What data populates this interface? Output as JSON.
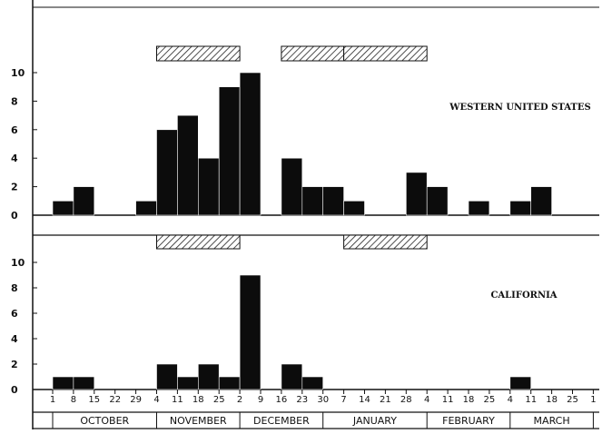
{
  "chart_data": [
    {
      "type": "bar",
      "title": "WESTERN UNITED STATES",
      "ylim": [
        0,
        10
      ],
      "yticks": [
        0,
        2,
        4,
        6,
        8,
        10
      ],
      "grid": false,
      "x": [
        "1",
        "8",
        "15",
        "22",
        "29",
        "4",
        "11",
        "18",
        "25",
        "2",
        "9",
        "16",
        "23",
        "30",
        "7",
        "14",
        "21",
        "28",
        "4",
        "11",
        "18",
        "25",
        "4",
        "11",
        "18",
        "25",
        "1"
      ],
      "values": [
        1,
        2,
        0,
        0,
        1,
        6,
        7,
        4,
        9,
        10,
        0,
        4,
        2,
        2,
        1,
        0,
        0,
        3,
        2,
        0,
        1,
        0,
        1,
        2,
        0,
        0,
        0
      ],
      "shaded_periods": [
        {
          "from_week": 5,
          "to_week": 9
        },
        {
          "from_week": 11,
          "to_week": 14
        },
        {
          "from_week": 14,
          "to_week": 18
        }
      ]
    },
    {
      "type": "bar",
      "title": "CALIFORNIA",
      "ylim": [
        0,
        10
      ],
      "yticks": [
        0,
        2,
        4,
        6,
        8,
        10
      ],
      "grid": false,
      "x": [
        "1",
        "8",
        "15",
        "22",
        "29",
        "4",
        "11",
        "18",
        "25",
        "2",
        "9",
        "16",
        "23",
        "30",
        "7",
        "14",
        "21",
        "28",
        "4",
        "11",
        "18",
        "25",
        "4",
        "11",
        "18",
        "25",
        "1"
      ],
      "values": [
        1,
        1,
        0,
        0,
        0,
        2,
        1,
        2,
        1,
        9,
        0,
        2,
        1,
        0,
        0,
        0,
        0,
        0,
        0,
        0,
        0,
        0,
        1,
        0,
        0,
        0,
        0
      ],
      "shaded_periods": [
        {
          "from_week": 5,
          "to_week": 9
        },
        {
          "from_week": 14,
          "to_week": 18
        }
      ]
    }
  ],
  "x_axis": {
    "week_labels": [
      "1",
      "8",
      "15",
      "22",
      "29",
      "4",
      "11",
      "18",
      "25",
      "2",
      "9",
      "16",
      "23",
      "30",
      "7",
      "14",
      "21",
      "28",
      "4",
      "11",
      "18",
      "25",
      "4",
      "11",
      "18",
      "25",
      "1"
    ],
    "months": [
      {
        "label": "OCTOBER",
        "start_week": 0,
        "end_week": 5
      },
      {
        "label": "NOVEMBER",
        "start_week": 5,
        "end_week": 9
      },
      {
        "label": "DECEMBER",
        "start_week": 9,
        "end_week": 13
      },
      {
        "label": "JANUARY",
        "start_week": 13,
        "end_week": 18
      },
      {
        "label": "FEBRUARY",
        "start_week": 18,
        "end_week": 22
      },
      {
        "label": "MARCH",
        "start_week": 22,
        "end_week": 26
      }
    ]
  }
}
